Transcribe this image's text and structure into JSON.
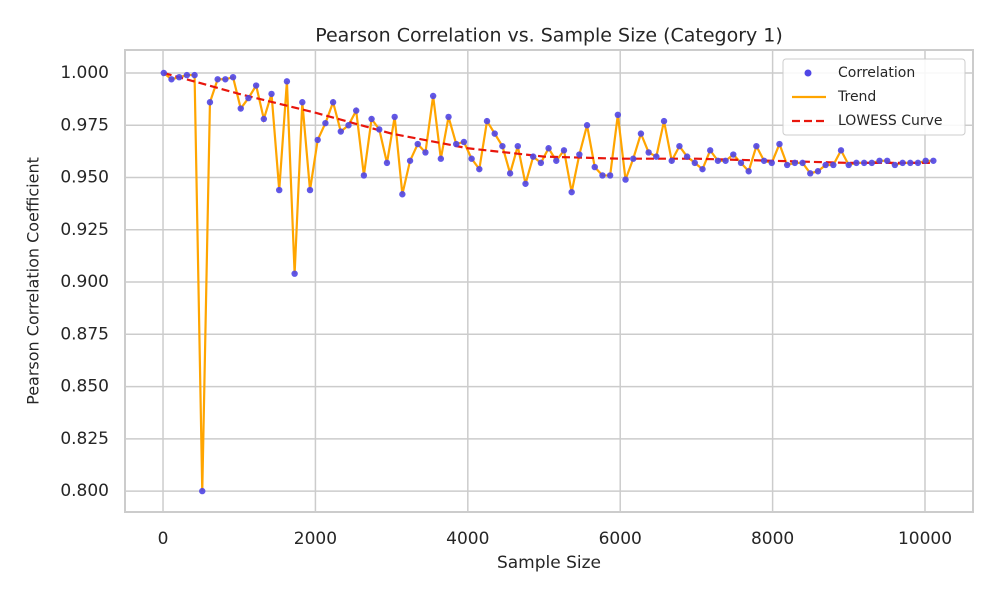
{
  "chart_data": {
    "type": "scatter",
    "title": "Pearson Correlation vs. Sample Size (Category 1)",
    "x_label": "Sample Size",
    "y_label": "Pearson Correlation Coefficient",
    "x": [
      10,
      111,
      212,
      313,
      414,
      515,
      616,
      717,
      818,
      919,
      1020,
      1121,
      1222,
      1323,
      1424,
      1525,
      1626,
      1727,
      1828,
      1929,
      2030,
      2131,
      2232,
      2333,
      2434,
      2535,
      2636,
      2737,
      2838,
      2939,
      3040,
      3141,
      3242,
      3343,
      3444,
      3545,
      3646,
      3747,
      3848,
      3949,
      4050,
      4151,
      4252,
      4353,
      4454,
      4555,
      4656,
      4757,
      4858,
      4959,
      5060,
      5161,
      5262,
      5363,
      5464,
      5565,
      5666,
      5767,
      5868,
      5969,
      6070,
      6171,
      6272,
      6373,
      6474,
      6575,
      6676,
      6777,
      6878,
      6979,
      7080,
      7181,
      7282,
      7383,
      7484,
      7585,
      7686,
      7787,
      7888,
      7989,
      8090,
      8191,
      8292,
      8393,
      8494,
      8595,
      8696,
      8797,
      8898,
      8999,
      9100,
      9201,
      9302,
      9403,
      9504,
      9605,
      9706,
      9807,
      9908,
      10009,
      10110
    ],
    "series": [
      {
        "name": "Correlation",
        "type": "scatter",
        "color": "#5046e6",
        "values": [
          1.0,
          0.997,
          0.998,
          0.999,
          0.999,
          0.8,
          0.986,
          0.997,
          0.997,
          0.998,
          0.983,
          0.988,
          0.994,
          0.978,
          0.99,
          0.944,
          0.996,
          0.904,
          0.986,
          0.944,
          0.968,
          0.976,
          0.986,
          0.972,
          0.975,
          0.982,
          0.951,
          0.978,
          0.973,
          0.957,
          0.979,
          0.942,
          0.958,
          0.966,
          0.962,
          0.989,
          0.959,
          0.979,
          0.966,
          0.967,
          0.959,
          0.954,
          0.977,
          0.971,
          0.965,
          0.952,
          0.965,
          0.947,
          0.96,
          0.957,
          0.964,
          0.958,
          0.963,
          0.943,
          0.961,
          0.975,
          0.955,
          0.951,
          0.951,
          0.98,
          0.949,
          0.959,
          0.971,
          0.962,
          0.96,
          0.977,
          0.958,
          0.965,
          0.96,
          0.957,
          0.954,
          0.963,
          0.958,
          0.958,
          0.961,
          0.957,
          0.953,
          0.965,
          0.958,
          0.957,
          0.966,
          0.956,
          0.957,
          0.957,
          0.952,
          0.953,
          0.956,
          0.956,
          0.963,
          0.956,
          0.957,
          0.957,
          0.957,
          0.958,
          0.958,
          0.956,
          0.957,
          0.957,
          0.957,
          0.958,
          0.958
        ]
      },
      {
        "name": "Trend",
        "type": "line",
        "color": "#ffa500",
        "values": [
          1.0,
          0.997,
          0.998,
          0.999,
          0.999,
          0.8,
          0.986,
          0.997,
          0.997,
          0.998,
          0.983,
          0.988,
          0.994,
          0.978,
          0.99,
          0.944,
          0.996,
          0.904,
          0.986,
          0.944,
          0.968,
          0.976,
          0.986,
          0.972,
          0.975,
          0.982,
          0.951,
          0.978,
          0.973,
          0.957,
          0.979,
          0.942,
          0.958,
          0.966,
          0.962,
          0.989,
          0.959,
          0.979,
          0.966,
          0.967,
          0.959,
          0.954,
          0.977,
          0.971,
          0.965,
          0.952,
          0.965,
          0.947,
          0.96,
          0.957,
          0.964,
          0.958,
          0.963,
          0.943,
          0.961,
          0.975,
          0.955,
          0.951,
          0.951,
          0.98,
          0.949,
          0.959,
          0.971,
          0.962,
          0.96,
          0.977,
          0.958,
          0.965,
          0.96,
          0.957,
          0.954,
          0.963,
          0.958,
          0.958,
          0.961,
          0.957,
          0.953,
          0.965,
          0.958,
          0.957,
          0.966,
          0.956,
          0.957,
          0.957,
          0.952,
          0.953,
          0.956,
          0.956,
          0.963,
          0.956,
          0.957,
          0.957,
          0.957,
          0.958,
          0.958,
          0.956,
          0.957,
          0.957,
          0.957,
          0.958,
          0.958
        ]
      },
      {
        "name": "LOWESS Curve",
        "type": "dashed",
        "color": "#e8160c",
        "x": [
          10,
          1000,
          2000,
          3000,
          4000,
          5000,
          6000,
          7000,
          8000,
          9000,
          10110
        ],
        "values": [
          1.0,
          0.99,
          0.981,
          0.971,
          0.964,
          0.96,
          0.959,
          0.959,
          0.958,
          0.957,
          0.957
        ]
      }
    ],
    "xlim": [
      -499,
      10630
    ],
    "ylim": [
      0.79,
      1.011
    ],
    "xticks": [
      0,
      2000,
      4000,
      6000,
      8000,
      10000
    ],
    "yticks": [
      {
        "value": 0.8,
        "label": "0.800"
      },
      {
        "value": 0.825,
        "label": "0.825"
      },
      {
        "value": 0.85,
        "label": "0.850"
      },
      {
        "value": 0.875,
        "label": "0.875"
      },
      {
        "value": 0.9,
        "label": "0.900"
      },
      {
        "value": 0.925,
        "label": "0.925"
      },
      {
        "value": 0.95,
        "label": "0.950"
      },
      {
        "value": 0.975,
        "label": "0.975"
      },
      {
        "value": 1.0,
        "label": "1.000"
      }
    ],
    "grid": true,
    "legend": "upper right"
  }
}
